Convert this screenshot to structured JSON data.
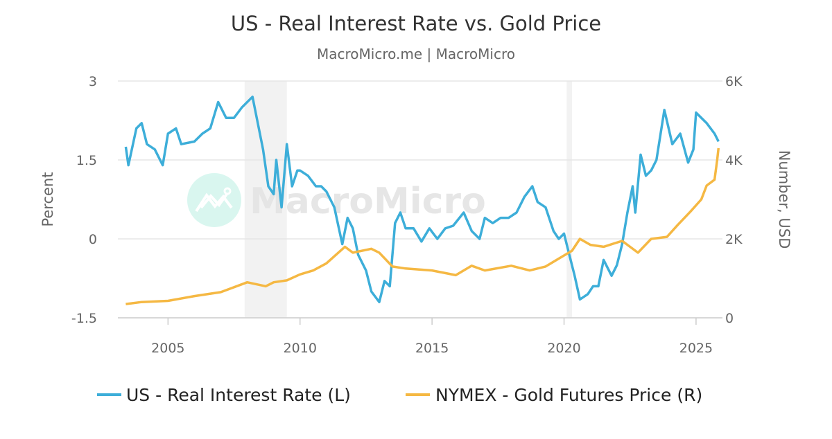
{
  "chart_data": {
    "type": "line",
    "title": "US - Real Interest Rate vs. Gold Price",
    "subtitle": "MacroMicro.me | MacroMicro",
    "watermark": "MacroMicro",
    "y_left": {
      "label": "Percent",
      "ticks": [
        "3",
        "1.5",
        "0",
        "-1.5"
      ],
      "tick_values": [
        3,
        1.5,
        0,
        -1.5
      ],
      "range": [
        -1.5,
        3
      ]
    },
    "y_right": {
      "label": "Number, USD",
      "ticks": [
        "6K",
        "4K",
        "2K",
        "0"
      ],
      "tick_values": [
        6000,
        4000,
        2000,
        0
      ],
      "range": [
        0,
        6000
      ]
    },
    "x_axis": {
      "ticks": [
        "2005",
        "2010",
        "2015",
        "2020",
        "2025"
      ],
      "tick_values": [
        2005,
        2010,
        2015,
        2020,
        2025
      ],
      "range": [
        2003.1,
        2026.0
      ]
    },
    "grid": "horizontal",
    "legend_placement": "bottom",
    "shaded_periods": [
      [
        2007.9,
        2009.5
      ],
      [
        2020.1,
        2020.3
      ]
    ],
    "series": [
      {
        "name": "US - Real Interest Rate (L)",
        "axis": "left",
        "color": "#3daed9",
        "points": [
          [
            2003.4,
            1.75
          ],
          [
            2003.5,
            1.4
          ],
          [
            2003.8,
            2.1
          ],
          [
            2004.0,
            2.2
          ],
          [
            2004.2,
            1.8
          ],
          [
            2004.5,
            1.7
          ],
          [
            2004.8,
            1.4
          ],
          [
            2005.0,
            2.0
          ],
          [
            2005.3,
            2.1
          ],
          [
            2005.5,
            1.8
          ],
          [
            2006.0,
            1.85
          ],
          [
            2006.3,
            2.0
          ],
          [
            2006.6,
            2.1
          ],
          [
            2006.9,
            2.6
          ],
          [
            2007.2,
            2.3
          ],
          [
            2007.5,
            2.3
          ],
          [
            2007.8,
            2.5
          ],
          [
            2008.2,
            2.7
          ],
          [
            2008.4,
            2.2
          ],
          [
            2008.6,
            1.7
          ],
          [
            2008.8,
            1.0
          ],
          [
            2009.0,
            0.85
          ],
          [
            2009.1,
            1.5
          ],
          [
            2009.3,
            0.6
          ],
          [
            2009.5,
            1.8
          ],
          [
            2009.7,
            1.0
          ],
          [
            2009.9,
            1.3
          ],
          [
            2010.0,
            1.3
          ],
          [
            2010.3,
            1.2
          ],
          [
            2010.6,
            1.0
          ],
          [
            2010.8,
            1.0
          ],
          [
            2011.0,
            0.9
          ],
          [
            2011.3,
            0.6
          ],
          [
            2011.6,
            -0.1
          ],
          [
            2011.8,
            0.4
          ],
          [
            2012.0,
            0.2
          ],
          [
            2012.2,
            -0.3
          ],
          [
            2012.5,
            -0.6
          ],
          [
            2012.7,
            -1.0
          ],
          [
            2013.0,
            -1.2
          ],
          [
            2013.2,
            -0.8
          ],
          [
            2013.4,
            -0.9
          ],
          [
            2013.6,
            0.3
          ],
          [
            2013.8,
            0.5
          ],
          [
            2014.0,
            0.2
          ],
          [
            2014.3,
            0.2
          ],
          [
            2014.6,
            -0.05
          ],
          [
            2014.9,
            0.2
          ],
          [
            2015.2,
            0.0
          ],
          [
            2015.5,
            0.2
          ],
          [
            2015.8,
            0.25
          ],
          [
            2016.2,
            0.5
          ],
          [
            2016.5,
            0.15
          ],
          [
            2016.8,
            0.0
          ],
          [
            2017.0,
            0.4
          ],
          [
            2017.3,
            0.3
          ],
          [
            2017.6,
            0.4
          ],
          [
            2017.9,
            0.4
          ],
          [
            2018.2,
            0.5
          ],
          [
            2018.5,
            0.8
          ],
          [
            2018.8,
            1.0
          ],
          [
            2019.0,
            0.7
          ],
          [
            2019.3,
            0.6
          ],
          [
            2019.6,
            0.15
          ],
          [
            2019.8,
            0.0
          ],
          [
            2020.0,
            0.1
          ],
          [
            2020.2,
            -0.3
          ],
          [
            2020.4,
            -0.7
          ],
          [
            2020.6,
            -1.15
          ],
          [
            2020.9,
            -1.05
          ],
          [
            2021.1,
            -0.9
          ],
          [
            2021.3,
            -0.9
          ],
          [
            2021.5,
            -0.4
          ],
          [
            2021.8,
            -0.7
          ],
          [
            2022.0,
            -0.5
          ],
          [
            2022.2,
            -0.1
          ],
          [
            2022.4,
            0.5
          ],
          [
            2022.6,
            1.0
          ],
          [
            2022.7,
            0.5
          ],
          [
            2022.9,
            1.6
          ],
          [
            2023.1,
            1.2
          ],
          [
            2023.3,
            1.3
          ],
          [
            2023.5,
            1.5
          ],
          [
            2023.8,
            2.45
          ],
          [
            2024.1,
            1.8
          ],
          [
            2024.4,
            2.0
          ],
          [
            2024.7,
            1.45
          ],
          [
            2024.9,
            1.7
          ],
          [
            2025.0,
            2.4
          ],
          [
            2025.4,
            2.2
          ],
          [
            2025.7,
            2.0
          ],
          [
            2025.85,
            1.85
          ]
        ]
      },
      {
        "name": "NYMEX - Gold Futures Price (R)",
        "axis": "right",
        "color": "#f5b843",
        "points": [
          [
            2003.4,
            350
          ],
          [
            2004.0,
            400
          ],
          [
            2005.0,
            430
          ],
          [
            2006.0,
            550
          ],
          [
            2007.0,
            650
          ],
          [
            2008.0,
            900
          ],
          [
            2008.7,
            800
          ],
          [
            2009.0,
            900
          ],
          [
            2009.5,
            950
          ],
          [
            2010.0,
            1100
          ],
          [
            2010.5,
            1200
          ],
          [
            2011.0,
            1380
          ],
          [
            2011.7,
            1800
          ],
          [
            2012.0,
            1650
          ],
          [
            2012.7,
            1750
          ],
          [
            2013.0,
            1650
          ],
          [
            2013.5,
            1300
          ],
          [
            2014.0,
            1250
          ],
          [
            2015.0,
            1200
          ],
          [
            2015.9,
            1080
          ],
          [
            2016.5,
            1320
          ],
          [
            2017.0,
            1200
          ],
          [
            2018.0,
            1320
          ],
          [
            2018.7,
            1200
          ],
          [
            2019.3,
            1300
          ],
          [
            2019.8,
            1500
          ],
          [
            2020.3,
            1700
          ],
          [
            2020.6,
            2000
          ],
          [
            2021.0,
            1850
          ],
          [
            2021.5,
            1800
          ],
          [
            2022.2,
            1950
          ],
          [
            2022.8,
            1650
          ],
          [
            2023.3,
            2000
          ],
          [
            2023.9,
            2050
          ],
          [
            2024.3,
            2350
          ],
          [
            2024.8,
            2700
          ],
          [
            2025.2,
            3000
          ],
          [
            2025.4,
            3350
          ],
          [
            2025.7,
            3500
          ],
          [
            2025.8,
            4000
          ],
          [
            2025.85,
            4300
          ]
        ]
      }
    ]
  }
}
